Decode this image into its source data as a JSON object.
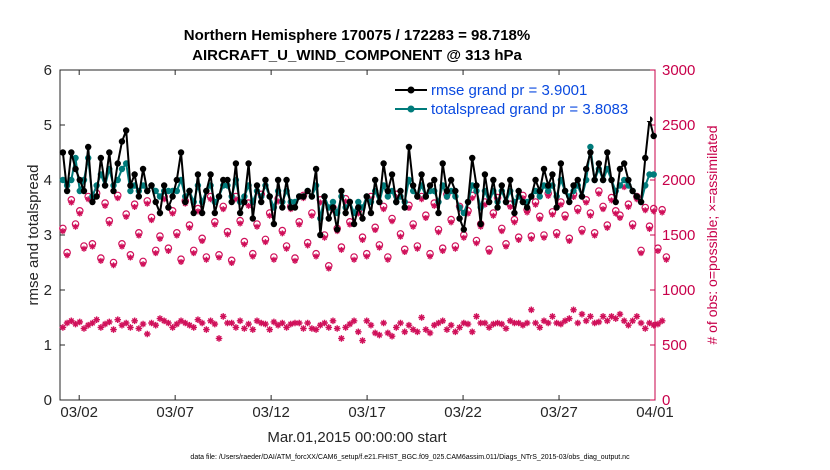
{
  "chart_data": {
    "type": "line",
    "title_line1": "Northern Hemisphere 170075 / 172283 = 98.718%",
    "title_line2": "AIRCRAFT_U_WIND_COMPONENT @ 313 hPa",
    "xlabel": "Mar.01,2015 00:00:00 start",
    "ylabel_left": "rmse and totalspread",
    "ylabel_right": "# of obs: o=possible; ×=assimilated",
    "footer": "data file: /Users/raeder/DAI/ATM_forcXX/CAM6_setup/f.e21.FHIST_BGC.f09_025.CAM6assim.011/Diags_NTrS_2015-03/obs_diag_output.nc",
    "xlim": [
      0,
      31
    ],
    "ylim_left": [
      0,
      6
    ],
    "ylim_right": [
      0,
      3000
    ],
    "xticks": [
      1,
      6,
      11,
      16,
      21,
      26,
      31
    ],
    "xtick_labels": [
      "03/02",
      "03/07",
      "03/12",
      "03/17",
      "03/22",
      "03/27",
      "04/01"
    ],
    "yticks_left": [
      "0",
      "1",
      "2",
      "3",
      "4",
      "5",
      "6"
    ],
    "yticks_right": [
      "0",
      "500",
      "1000",
      "1500",
      "2000",
      "2500",
      "3000"
    ],
    "legend_position": "top-right",
    "colors": {
      "rmse": "#000000",
      "spread": "#007b7b",
      "obs": "#d0105a",
      "right_axis": "#c8004a",
      "legend_text": "#0a4ae0"
    },
    "series": [
      {
        "name": "rmse",
        "legend": "rmse grand pr = 3.9001",
        "axis": "left",
        "values": [
          4.5,
          3.8,
          4.5,
          4.2,
          4.0,
          3.8,
          4.6,
          3.6,
          3.7,
          4.4,
          3.9,
          4.5,
          3.8,
          4.3,
          4.7,
          4.9,
          3.9,
          4.1,
          3.7,
          4.2,
          3.8,
          3.9,
          3.6,
          3.4,
          3.9,
          3.5,
          3.7,
          4.0,
          4.5,
          3.6,
          3.8,
          3.4,
          4.1,
          3.4,
          3.8,
          4.1,
          3.4,
          3.7,
          4.0,
          4.0,
          3.6,
          4.3,
          3.4,
          3.6,
          4.3,
          3.3,
          3.9,
          3.6,
          4.0,
          3.7,
          3.2,
          4.0,
          3.5,
          4.0,
          3.5,
          3.5,
          3.7,
          3.7,
          3.8,
          3.7,
          4.2,
          3.0,
          3.7,
          3.3,
          3.5,
          3.1,
          3.8,
          3.4,
          3.6,
          3.2,
          3.5,
          3.3,
          3.7,
          3.4,
          4.0,
          3.6,
          4.3,
          3.8,
          4.1,
          3.6,
          3.8,
          3.5,
          4.6,
          3.9,
          3.7,
          4.1,
          3.7,
          3.9,
          4.0,
          3.4,
          4.3,
          3.8,
          4.0,
          3.8,
          3.3,
          3.1,
          3.6,
          4.4,
          3.9,
          3.2,
          4.1,
          3.6,
          4.0,
          3.5,
          3.9,
          3.6,
          4.0,
          3.4,
          3.8,
          3.6,
          3.5,
          3.7,
          4.0,
          3.8,
          4.2,
          3.9,
          4.1,
          3.5,
          4.3,
          3.8,
          3.6,
          3.9,
          4.0,
          3.7,
          4.2,
          4.5,
          4.0,
          4.3,
          4.0,
          4.5,
          4.0,
          3.6,
          4.2,
          4.3,
          4.0,
          3.8,
          3.7,
          3.6,
          4.4,
          5.1,
          4.8
        ]
      },
      {
        "name": "totalspread",
        "legend": "totalspread grand pr = 3.8083",
        "axis": "left",
        "values": [
          4.0,
          3.9,
          4.0,
          4.4,
          3.8,
          4.0,
          4.4,
          3.7,
          3.9,
          4.1,
          3.9,
          4.2,
          3.9,
          4.0,
          4.2,
          4.3,
          3.8,
          3.9,
          3.8,
          3.9,
          3.8,
          3.9,
          3.8,
          3.7,
          3.8,
          3.8,
          3.8,
          3.8,
          4.0,
          3.7,
          3.8,
          3.6,
          3.9,
          3.6,
          3.8,
          3.9,
          3.6,
          3.7,
          3.9,
          3.9,
          3.7,
          4.0,
          3.6,
          3.7,
          3.9,
          3.6,
          3.8,
          3.7,
          3.9,
          3.7,
          3.5,
          3.8,
          3.6,
          3.8,
          3.6,
          3.6,
          3.7,
          3.7,
          3.8,
          3.7,
          3.9,
          3.3,
          3.7,
          3.5,
          3.6,
          3.4,
          3.7,
          3.5,
          3.6,
          3.4,
          3.6,
          3.5,
          3.7,
          3.6,
          3.8,
          3.6,
          3.9,
          3.7,
          3.8,
          3.6,
          3.7,
          3.6,
          4.0,
          3.8,
          3.7,
          3.9,
          3.7,
          3.8,
          3.8,
          3.6,
          3.9,
          3.7,
          3.8,
          3.7,
          3.5,
          3.4,
          3.6,
          3.9,
          3.8,
          3.5,
          3.8,
          3.6,
          3.8,
          3.6,
          3.8,
          3.6,
          3.8,
          3.6,
          3.7,
          3.6,
          3.6,
          3.7,
          3.8,
          3.7,
          3.9,
          3.8,
          3.9,
          3.7,
          4.0,
          3.8,
          3.7,
          3.8,
          3.9,
          3.7,
          4.0,
          4.6,
          4.0,
          4.2,
          4.0,
          4.2,
          4.0,
          3.8,
          3.9,
          4.0,
          3.9,
          3.8,
          3.7,
          3.6,
          3.9,
          4.1,
          4.1
        ]
      },
      {
        "name": "obs_possible",
        "axis": "right",
        "values": [
          1560,
          1340,
          1820,
          1600,
          1720,
          1400,
          1850,
          1420,
          1880,
          1290,
          1790,
          1630,
          1250,
          1860,
          1420,
          1690,
          1320,
          1780,
          1520,
          1260,
          1810,
          1660,
          1360,
          1490,
          1850,
          1380,
          1720,
          1520,
          1280,
          1810,
          1590,
          1360,
          1740,
          1470,
          1300,
          1850,
          1620,
          1320,
          1760,
          1530,
          1270,
          1850,
          1630,
          1440,
          1790,
          1330,
          1600,
          1870,
          1460,
          1700,
          1300,
          1830,
          1540,
          1400,
          1760,
          1290,
          1620,
          1860,
          1430,
          1700,
          1330,
          1820,
          1500,
          1220,
          1750,
          1560,
          1390,
          1830,
          1620,
          1300,
          1720,
          1480,
          1330,
          1850,
          1570,
          1410,
          1760,
          1300,
          1650,
          1870,
          1510,
          1370,
          1770,
          1600,
          1400,
          1850,
          1680,
          1330,
          1790,
          1550,
          1380,
          1870,
          1640,
          1400,
          1760,
          1500,
          1720,
          1860,
          1450,
          1600,
          1800,
          1370,
          1700,
          1840,
          1560,
          1420,
          1780,
          1640,
          1480,
          1860,
          1730,
          1490,
          1800,
          1670,
          1500,
          1880,
          1710,
          1520,
          1800,
          1680,
          1470,
          1870,
          1740,
          1550,
          1820,
          1700,
          1520,
          1900,
          1760,
          1590,
          1840,
          1720,
          1680,
          1960,
          1780,
          1600,
          1850,
          1360,
          1750,
          1580,
          1740,
          1380,
          1730,
          1300
        ]
      },
      {
        "name": "obs_assimilated",
        "axis": "right",
        "values": [
          660,
          700,
          720,
          690,
          710,
          650,
          680,
          700,
          730,
          660,
          690,
          710,
          640,
          730,
          680,
          700,
          660,
          720,
          650,
          690,
          600,
          700,
          680,
          740,
          720,
          700,
          660,
          690,
          720,
          700,
          680,
          660,
          730,
          700,
          640,
          720,
          690,
          560,
          760,
          700,
          700,
          660,
          720,
          650,
          690,
          640,
          720,
          700,
          690,
          640,
          710,
          680,
          700,
          660,
          690,
          700,
          700,
          650,
          700,
          650,
          640,
          680,
          700,
          660,
          720,
          650,
          560,
          660,
          690,
          720,
          620,
          540,
          720,
          680,
          610,
          590,
          700,
          610,
          580,
          660,
          700,
          620,
          680,
          640,
          620,
          750,
          640,
          610,
          680,
          700,
          720,
          640,
          680,
          620,
          660,
          700,
          690,
          620,
          760,
          700,
          700,
          660,
          690,
          700,
          690,
          650,
          720,
          700,
          700,
          680,
          700,
          820,
          700,
          660,
          720,
          700,
          760,
          700,
          690,
          720,
          740,
          820,
          700,
          780,
          720,
          760,
          700,
          710,
          760,
          720,
          760,
          740,
          780,
          720,
          680,
          720,
          760,
          700,
          650,
          700,
          680,
          690,
          720
        ]
      }
    ]
  }
}
